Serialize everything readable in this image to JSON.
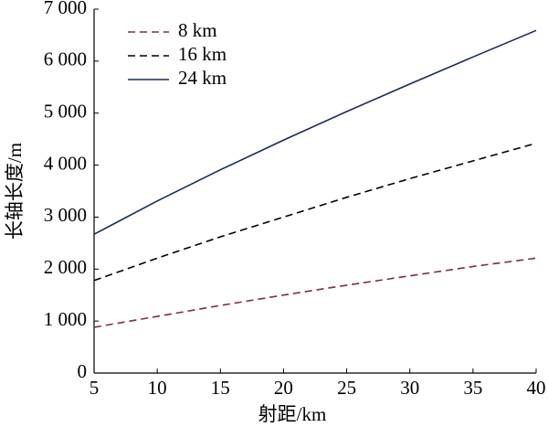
{
  "chart_data": {
    "type": "line",
    "xlabel": "射距/km",
    "ylabel": "长轴长度/m",
    "x": [
      5,
      10,
      15,
      20,
      25,
      30,
      35,
      40
    ],
    "series": [
      {
        "name": "8 km",
        "color": "#7b2d4a",
        "dash": true,
        "values": [
          880,
          1090,
          1300,
          1500,
          1690,
          1870,
          2050,
          2210
        ]
      },
      {
        "name": "16 km",
        "color": "#000000",
        "dash": true,
        "values": [
          1780,
          2210,
          2620,
          3000,
          3380,
          3740,
          4080,
          4420
        ]
      },
      {
        "name": "24 km",
        "color": "#1a2a5a",
        "dash": false,
        "values": [
          2670,
          3310,
          3910,
          4480,
          5030,
          5560,
          6080,
          6590
        ]
      }
    ],
    "xlim": [
      5,
      40
    ],
    "xticks": [
      5,
      10,
      15,
      20,
      25,
      30,
      35,
      40
    ],
    "ylim": [
      0,
      7000
    ],
    "yticks": [
      0,
      {
        "value": 1000,
        "label": "1 000"
      },
      {
        "value": 2000,
        "label": "2 000"
      },
      {
        "value": 3000,
        "label": "3 000"
      },
      {
        "value": 4000,
        "label": "4 000"
      },
      {
        "value": 5000,
        "label": "5 000"
      },
      {
        "value": 6000,
        "label": "6 000"
      },
      {
        "value": 7000,
        "label": "7 000"
      }
    ],
    "legend": "upper left"
  }
}
